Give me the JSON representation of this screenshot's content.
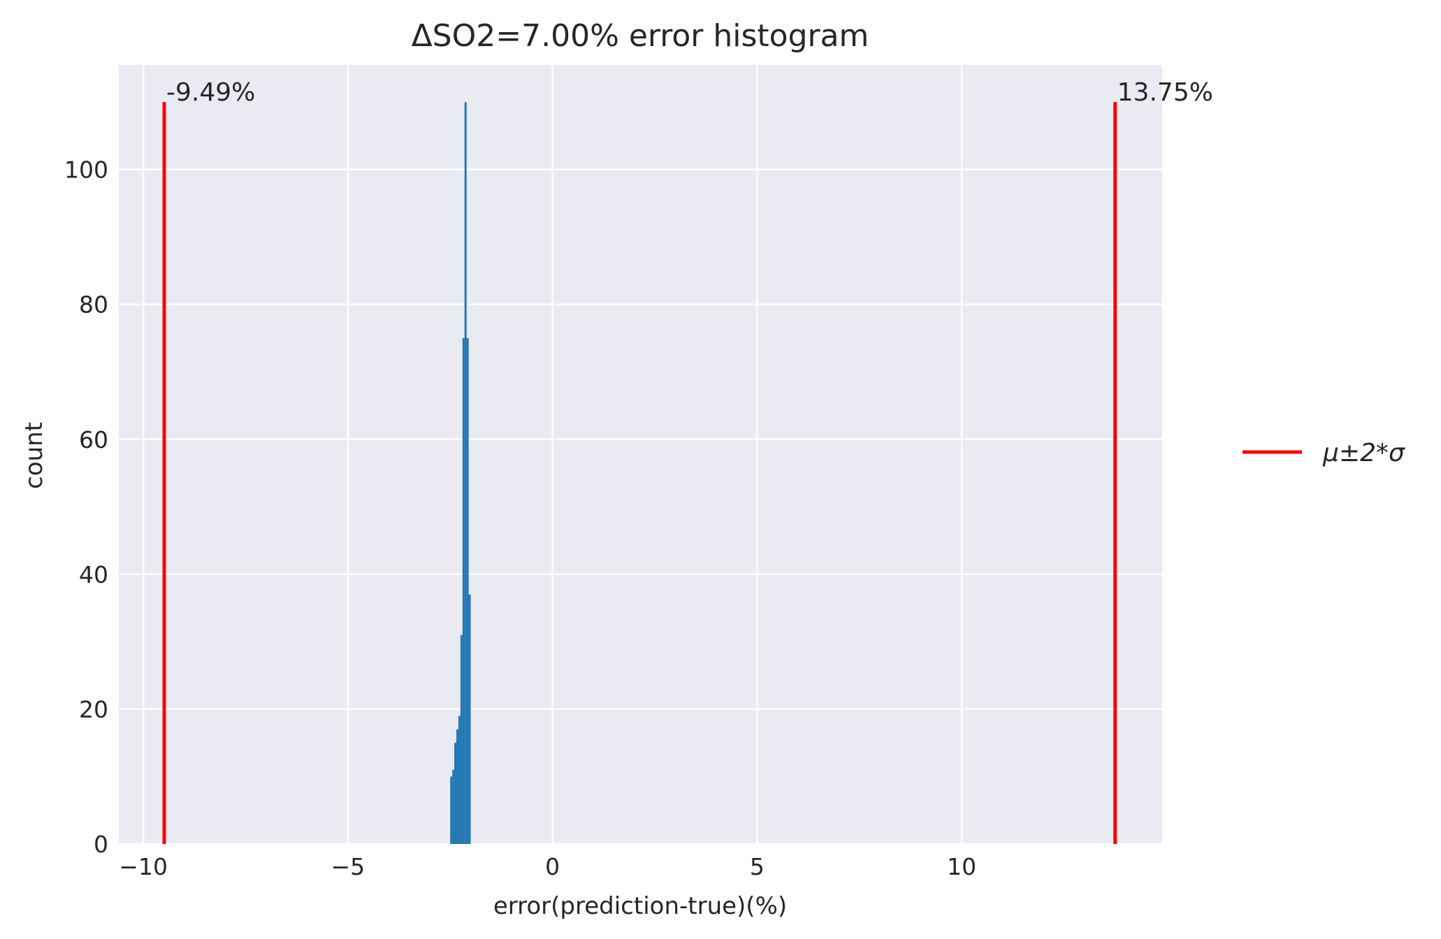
{
  "chart_data": {
    "type": "bar",
    "title": "ΔSO2=7.00% error histogram",
    "xlabel": "error(prediction-true)(%)",
    "ylabel": "count",
    "xlim": [
      -10.6,
      14.9
    ],
    "ylim": [
      0,
      115.5
    ],
    "grid": true,
    "xticks": [
      -10,
      -5,
      0,
      5,
      10
    ],
    "xtick_labels": [
      "−10",
      "−5",
      "0",
      "5",
      "10"
    ],
    "yticks": [
      0,
      20,
      40,
      60,
      80,
      100
    ],
    "ytick_labels": [
      "0",
      "20",
      "40",
      "60",
      "80",
      "100"
    ],
    "histogram": {
      "bin_width": 0.05,
      "bin_starts": [
        -2.5,
        -2.45,
        -2.4,
        -2.35,
        -2.3,
        -2.25,
        -2.2,
        -2.15,
        -2.1,
        -2.05,
        -2.0,
        -1.95
      ],
      "counts": [
        10,
        11,
        15,
        17,
        19,
        31,
        75,
        110,
        75,
        37,
        0,
        0
      ],
      "color": "#1f77b4"
    },
    "reference_lines": {
      "legend_label": "μ±2*σ",
      "color": "#ff0000",
      "height": 110,
      "positions": [
        -9.49,
        13.75
      ],
      "labels": [
        "-9.49%",
        "13.75%"
      ]
    },
    "legend_placement": "right, outside plot",
    "colors": {
      "plot_background": "#eaeaf2",
      "grid": "#ffffff",
      "bars": "#1f77b4",
      "lines": "#ff0000"
    }
  }
}
